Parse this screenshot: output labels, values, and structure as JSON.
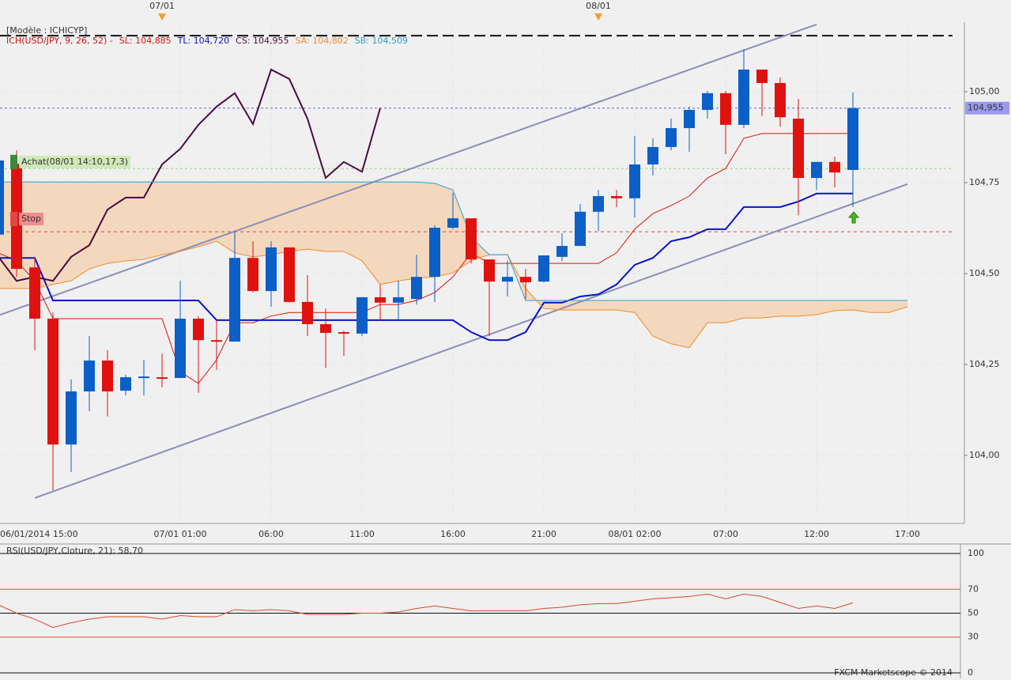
{
  "chart_data": [
    {
      "type": "candlestick",
      "title": "[Modèle : ICHICYP]",
      "indicator": {
        "text": "ICH(USD/JPY, 9, 26, 52) -",
        "color": "#d01010"
      },
      "categories": [
        "06/01/2014 15:00",
        null,
        null,
        null,
        null,
        null,
        null,
        null,
        null,
        null,
        "07/01 01:00",
        null,
        null,
        null,
        null,
        "06:00",
        null,
        null,
        null,
        null,
        "11:00",
        null,
        null,
        null,
        null,
        "16:00",
        null,
        null,
        null,
        null,
        "21:00",
        null,
        null,
        null,
        null,
        "08/01 02:00",
        null,
        null,
        null,
        null,
        "07:00",
        null,
        null,
        null,
        null,
        "12:00",
        null,
        null,
        null,
        null,
        "17:00"
      ],
      "open": [
        104.607,
        104.802,
        104.517,
        104.376,
        104.03,
        104.176,
        104.261,
        104.178,
        104.215,
        104.215,
        104.213,
        104.376,
        104.317,
        104.313,
        104.543,
        104.452,
        104.572,
        104.422,
        104.361,
        104.339,
        104.335,
        104.435,
        104.42,
        104.43,
        104.491,
        104.626,
        104.652,
        104.539,
        104.478,
        104.491,
        104.478,
        104.546,
        104.576,
        104.67,
        104.713,
        104.707,
        104.8,
        104.848,
        104.9,
        104.95,
        104.996,
        104.909,
        105.061,
        105.024,
        104.926,
        104.763,
        104.807,
        104.785,
        null,
        null,
        null
      ],
      "high": [
        104.811,
        104.839,
        104.546,
        104.393,
        104.209,
        104.328,
        104.289,
        104.222,
        104.263,
        104.28,
        104.48,
        104.383,
        104.372,
        104.617,
        104.589,
        104.589,
        104.572,
        104.496,
        104.404,
        104.343,
        104.435,
        104.47,
        104.48,
        104.552,
        104.633,
        104.722,
        104.652,
        104.539,
        104.535,
        104.513,
        104.55,
        104.611,
        104.691,
        104.73,
        104.73,
        104.878,
        104.872,
        104.926,
        104.959,
        105.002,
        105.002,
        105.117,
        105.061,
        105.039,
        104.98,
        104.807,
        104.822,
        104.998,
        null,
        null,
        null
      ],
      "low": [
        104.6,
        104.491,
        104.289,
        103.904,
        103.954,
        104.122,
        104.107,
        104.165,
        104.165,
        104.187,
        104.213,
        104.172,
        104.235,
        104.313,
        104.448,
        104.409,
        104.42,
        104.328,
        104.241,
        104.274,
        104.328,
        104.37,
        104.372,
        104.415,
        104.422,
        104.622,
        104.528,
        104.328,
        104.437,
        104.43,
        104.476,
        104.535,
        104.576,
        104.617,
        104.683,
        104.654,
        104.77,
        104.839,
        104.835,
        104.926,
        104.828,
        104.9,
        104.933,
        104.904,
        104.661,
        104.73,
        104.737,
        104.683,
        null,
        null,
        null
      ],
      "close": [
        104.811,
        104.513,
        104.376,
        104.03,
        104.176,
        104.261,
        104.176,
        104.215,
        104.217,
        104.211,
        104.376,
        104.317,
        104.313,
        104.543,
        104.452,
        104.572,
        104.422,
        104.361,
        104.337,
        104.335,
        104.435,
        104.42,
        104.435,
        104.491,
        104.626,
        104.652,
        104.539,
        104.478,
        104.491,
        104.476,
        104.55,
        104.576,
        104.67,
        104.713,
        104.707,
        104.8,
        104.848,
        104.9,
        104.95,
        104.996,
        104.909,
        105.061,
        105.024,
        104.93,
        104.763,
        104.807,
        104.778,
        104.955,
        null,
        null,
        null
      ],
      "color_up": "#0b5fc6",
      "color_down": "#e0120f",
      "series": [
        {
          "name": "SL: 104,885",
          "color": "#e0120f",
          "width": 1,
          "values": [
            104.557,
            104.535,
            104.48,
            104.376,
            104.376,
            104.376,
            104.376,
            104.376,
            104.376,
            104.376,
            104.23,
            104.198,
            104.263,
            104.365,
            104.365,
            104.383,
            104.393,
            104.393,
            104.393,
            104.393,
            104.393,
            104.415,
            104.415,
            104.426,
            104.448,
            104.491,
            104.557,
            104.528,
            104.528,
            104.528,
            104.528,
            104.528,
            104.528,
            104.528,
            104.557,
            104.622,
            104.665,
            104.687,
            104.713,
            104.763,
            104.789,
            104.872,
            104.885,
            104.885,
            104.885,
            104.885,
            104.885,
            104.885,
            null,
            null,
            null
          ]
        },
        {
          "name": "TL: 104,720",
          "color": "#0a14c8",
          "width": 2,
          "values": [
            104.543,
            104.543,
            104.543,
            104.426,
            104.426,
            104.426,
            104.426,
            104.426,
            104.426,
            104.426,
            104.426,
            104.426,
            104.372,
            104.372,
            104.372,
            104.372,
            104.372,
            104.372,
            104.372,
            104.372,
            104.372,
            104.372,
            104.372,
            104.372,
            104.372,
            104.372,
            104.339,
            104.317,
            104.317,
            104.339,
            104.42,
            104.42,
            104.437,
            104.443,
            104.47,
            104.524,
            104.543,
            104.589,
            104.6,
            104.622,
            104.622,
            104.683,
            104.683,
            104.683,
            104.698,
            104.72,
            104.72,
            104.72,
            null,
            null,
            null
          ]
        },
        {
          "name": "CS: 104,955",
          "color": "#4a0a40",
          "width": 2,
          "values": [
            104.546,
            104.48,
            104.491,
            104.48,
            104.546,
            104.578,
            104.676,
            104.709,
            104.709,
            104.8,
            104.843,
            104.909,
            104.959,
            104.996,
            104.911,
            105.061,
            105.035,
            104.926,
            104.763,
            104.807,
            104.78,
            104.955,
            null,
            null,
            null,
            null,
            null,
            null,
            null,
            null,
            null,
            null,
            null,
            null,
            null,
            null,
            null,
            null,
            null,
            null,
            null,
            null,
            null,
            null,
            null,
            null,
            null,
            null,
            null,
            null,
            null
          ]
        },
        {
          "name": "SA: 104,802",
          "color": "#f08a2a",
          "width": 1,
          "values": [
            104.459,
            104.459,
            104.459,
            104.47,
            104.48,
            104.513,
            104.528,
            104.535,
            104.539,
            104.552,
            104.561,
            104.574,
            104.589,
            104.557,
            104.546,
            104.552,
            104.561,
            104.567,
            104.561,
            104.561,
            104.535,
            104.47,
            104.48,
            104.487,
            104.491,
            104.502,
            104.535,
            104.552,
            104.552,
            104.459,
            104.404,
            104.4,
            104.4,
            104.4,
            104.4,
            104.393,
            104.328,
            104.307,
            104.296,
            104.365,
            104.365,
            104.378,
            104.378,
            104.383,
            104.383,
            104.387,
            104.398,
            104.4,
            104.393,
            104.393,
            104.409
          ]
        },
        {
          "name": "SB: 104,509",
          "color": "#2aa0d0",
          "width": 1,
          "values": [
            104.752,
            104.752,
            104.752,
            104.752,
            104.752,
            104.752,
            104.752,
            104.752,
            104.752,
            104.752,
            104.752,
            104.752,
            104.752,
            104.752,
            104.752,
            104.752,
            104.752,
            104.752,
            104.752,
            104.752,
            104.752,
            104.752,
            104.752,
            104.752,
            104.748,
            104.73,
            104.6,
            104.552,
            104.552,
            104.426,
            104.426,
            104.426,
            104.426,
            104.426,
            104.426,
            104.426,
            104.426,
            104.426,
            104.426,
            104.426,
            104.426,
            104.426,
            104.426,
            104.426,
            104.426,
            104.426,
            104.426,
            104.426,
            104.426,
            104.426,
            104.426
          ]
        }
      ],
      "cloud_fill": "#f5d3b4",
      "ylim": [
        103.813,
        105.187
      ],
      "yticks": [
        {
          "value": 105,
          "label": "105,00"
        },
        {
          "value": 104.75,
          "label": "104,75"
        },
        {
          "value": 104.5,
          "label": "104,50"
        },
        {
          "value": 104.25,
          "label": "104,25"
        },
        {
          "value": 104,
          "label": "104,00"
        }
      ],
      "grid": true,
      "last_price": {
        "value": 104.955,
        "label": "104,955"
      },
      "levels": [
        {
          "value": 105.154,
          "color": "#111111",
          "dash": "14 6",
          "width": 2
        },
        {
          "value": 104.955,
          "color": "#6666dd",
          "dash": "3 3",
          "width": 1
        },
        {
          "value": 104.789,
          "color": "#9acd7a",
          "dash": "3 3",
          "width": 1
        },
        {
          "value": 104.615,
          "color": "#e04040",
          "dash": "4 4",
          "width": 1
        }
      ],
      "trendlines": [
        {
          "x": [
            0,
            45
          ],
          "y": [
            104.385,
            105.185
          ]
        },
        {
          "x": [
            2,
            50
          ],
          "y": [
            103.883,
            104.746
          ]
        }
      ],
      "annotations": [
        {
          "text": "Achat(08/01 14:10,17,3)",
          "value": 104.807,
          "color": "#3a8a3a",
          "background": "#cfe8b8",
          "text_color": "#6a946a"
        },
        {
          "text": "Stop",
          "value": 104.65,
          "color": "#e04848",
          "background": "#f08c8c",
          "text_color": "#ffffff"
        }
      ],
      "day_markers": [
        {
          "label": "07/01",
          "at": 9
        },
        {
          "label": "08/01",
          "at": 33
        }
      ]
    },
    {
      "type": "line",
      "title": "RSI(USD/JPY,Cloture, 21): 58,70",
      "color": "#d8482a",
      "values": [
        57,
        50,
        45,
        38,
        42,
        45,
        47,
        47,
        47,
        45,
        48,
        47,
        47,
        53,
        52,
        53,
        52,
        49,
        49,
        49,
        50,
        50,
        51,
        54,
        56,
        54,
        52,
        52,
        52,
        52,
        54,
        55,
        57,
        58,
        58,
        60,
        62,
        63,
        64,
        66,
        62,
        66,
        64,
        59,
        54,
        56,
        54,
        58.7,
        null,
        null,
        null
      ],
      "ylim": [
        0,
        100
      ],
      "yticks": [
        100,
        70,
        50,
        30,
        0
      ],
      "grid_colors": [
        "#111111",
        "#e04a3a",
        "#111111",
        "#e04a3a",
        "#111111"
      ],
      "credit": "FXCM Marketscope © 2014"
    }
  ]
}
